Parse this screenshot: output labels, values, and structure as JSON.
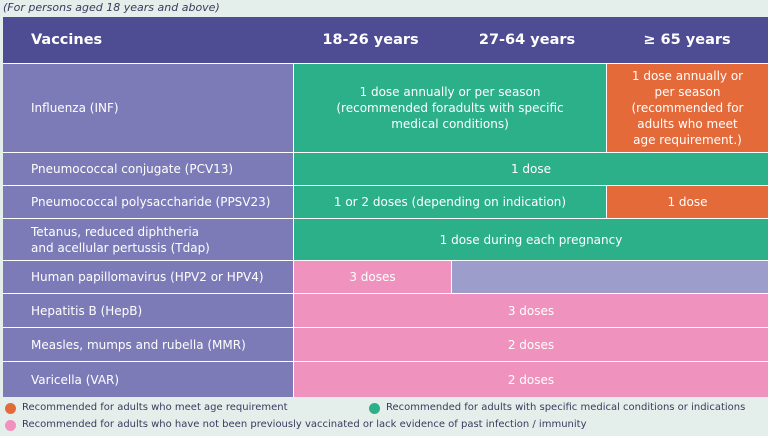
{
  "note": "(For persons aged 18 years and above)",
  "header": {
    "vaccines": "Vaccines",
    "col1": "18-26 years",
    "col2": "27-64 years",
    "col3": "≥ 65 years"
  },
  "rows": {
    "influenza": {
      "label": "Influenza (INF)",
      "cell_green": "1 dose annually or per season (recommended foradults with specific medical conditions)",
      "cell_orange": "1 dose annually or per season (recommended for adults who meet age requirement.)"
    },
    "pcv13": {
      "label": "Pneumococcal conjugate (PCV13)",
      "cell": "1 dose"
    },
    "ppsv23": {
      "label": "Pneumococcal polysaccharide (PPSV23)",
      "cell_green": "1 or 2 doses (depending on indication)",
      "cell_orange": "1 dose"
    },
    "tdap": {
      "label": "Tetanus, reduced diphtheria and acellular pertussis (Tdap)",
      "cell": "1 dose during each pregnancy"
    },
    "hpv": {
      "label": "Human papillomavirus (HPV2 or HPV4)",
      "cell": "3 doses"
    },
    "hepb": {
      "label": "Hepatitis B (HepB)",
      "cell": "3 doses"
    },
    "mmr": {
      "label": "Measles, mumps and rubella (MMR)",
      "cell": "2 doses"
    },
    "var": {
      "label": "Varicella (VAR)",
      "cell": "2 doses"
    }
  },
  "legend": {
    "orange": "Recommended for adults who meet age requirement",
    "green": "Recommended for adults with specific medical conditions or indications",
    "pink": "Recommended for adults who have not been previously vaccinated or lack evidence of past infection / immunity"
  },
  "colors": {
    "header": "#4e4d93",
    "label": "#7c7bb8",
    "green": "#2bb08a",
    "orange": "#e46a3a",
    "pink": "#ef93be",
    "lavender": "#9d9dcc"
  }
}
